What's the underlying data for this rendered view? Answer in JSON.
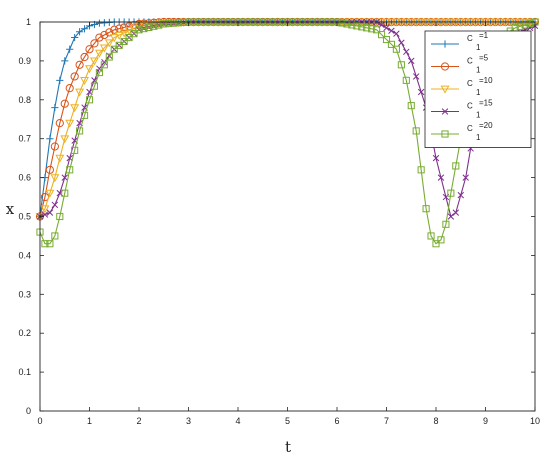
{
  "chart_data": {
    "type": "line",
    "xlabel": "t",
    "ylabel": "x",
    "xlim": [
      0,
      10
    ],
    "ylim": [
      0,
      1
    ],
    "xticks": [
      0,
      1,
      2,
      3,
      4,
      5,
      6,
      7,
      8,
      9,
      10
    ],
    "yticks": [
      0,
      0.1,
      0.2,
      0.3,
      0.4,
      0.5,
      0.6,
      0.7,
      0.8,
      0.9,
      1
    ],
    "grid": false,
    "legend_position": "top-right",
    "series": [
      {
        "name": "C1=1",
        "legend_main": "C",
        "legend_sub": "1",
        "legend_suffix": "=1",
        "color": "#1f77b4",
        "marker": "plus",
        "x": [
          0,
          0.1,
          0.2,
          0.3,
          0.4,
          0.5,
          0.6,
          0.7,
          0.8,
          1.0,
          1.2,
          1.5,
          2.0,
          3,
          4,
          5,
          6,
          7,
          8,
          9,
          10
        ],
        "y": [
          0.5,
          0.6,
          0.7,
          0.78,
          0.85,
          0.9,
          0.93,
          0.96,
          0.975,
          0.99,
          0.997,
          1.0,
          1.0,
          1.0,
          1.0,
          1.0,
          1.0,
          1.0,
          1.0,
          1.0,
          1.0
        ]
      },
      {
        "name": "C1=5",
        "legend_main": "C",
        "legend_sub": "1",
        "legend_suffix": "=5",
        "color": "#d95319",
        "marker": "circle",
        "x": [
          0,
          0.1,
          0.2,
          0.3,
          0.4,
          0.5,
          0.6,
          0.8,
          1.0,
          1.2,
          1.5,
          2.0,
          2.5,
          3,
          4,
          5,
          6,
          7,
          8,
          9,
          10
        ],
        "y": [
          0.5,
          0.55,
          0.62,
          0.68,
          0.74,
          0.79,
          0.83,
          0.89,
          0.93,
          0.96,
          0.98,
          0.995,
          1.0,
          1.0,
          1.0,
          1.0,
          1.0,
          1.0,
          1.0,
          1.0,
          1.0
        ]
      },
      {
        "name": "C1=10",
        "legend_main": "C",
        "legend_sub": "1",
        "legend_suffix": "=10",
        "color": "#edb120",
        "marker": "triangle-down",
        "x": [
          0,
          0.1,
          0.2,
          0.3,
          0.4,
          0.5,
          0.6,
          0.8,
          1.0,
          1.2,
          1.5,
          2.0,
          2.5,
          3,
          4,
          5,
          6,
          7,
          8,
          9,
          10
        ],
        "y": [
          0.5,
          0.52,
          0.56,
          0.6,
          0.65,
          0.7,
          0.74,
          0.82,
          0.88,
          0.92,
          0.96,
          0.99,
          0.997,
          1.0,
          1.0,
          1.0,
          1.0,
          1.0,
          1.0,
          1.0,
          1.0
        ]
      },
      {
        "name": "C1=15",
        "legend_main": "C",
        "legend_sub": "1",
        "legend_suffix": "=15",
        "color": "#7e2f8e",
        "marker": "cross",
        "x": [
          0,
          0.2,
          0.3,
          0.4,
          0.5,
          0.6,
          0.8,
          1.0,
          1.2,
          1.5,
          2.0,
          2.5,
          3.0,
          4.0,
          5.0,
          6.0,
          6.8,
          7.2,
          7.5,
          7.8,
          8.0,
          8.2,
          8.3,
          8.4,
          8.6,
          8.8,
          9.0,
          9.3,
          9.6,
          10.0
        ],
        "y": [
          0.5,
          0.51,
          0.53,
          0.56,
          0.6,
          0.65,
          0.74,
          0.82,
          0.88,
          0.93,
          0.98,
          0.995,
          1.0,
          1.0,
          1.0,
          1.0,
          1.0,
          0.97,
          0.9,
          0.78,
          0.65,
          0.55,
          0.5,
          0.51,
          0.6,
          0.75,
          0.86,
          0.93,
          0.97,
          0.99
        ]
      },
      {
        "name": "C1=20",
        "legend_main": "C",
        "legend_sub": "1",
        "legend_suffix": "=20",
        "color": "#77ac30",
        "marker": "square",
        "x": [
          0,
          0.1,
          0.2,
          0.3,
          0.4,
          0.5,
          0.6,
          0.8,
          1.0,
          1.2,
          1.5,
          2.0,
          2.5,
          3.0,
          4.0,
          5.0,
          6.0,
          6.8,
          7.2,
          7.4,
          7.6,
          7.7,
          7.8,
          7.9,
          8.0,
          8.1,
          8.2,
          8.3,
          8.5,
          8.7,
          9.0,
          9.3,
          9.6,
          10.0
        ],
        "y": [
          0.46,
          0.43,
          0.43,
          0.45,
          0.5,
          0.56,
          0.62,
          0.72,
          0.8,
          0.87,
          0.93,
          0.98,
          0.995,
          1.0,
          1.0,
          1.0,
          1.0,
          0.98,
          0.93,
          0.85,
          0.72,
          0.62,
          0.52,
          0.45,
          0.43,
          0.44,
          0.48,
          0.56,
          0.7,
          0.82,
          0.92,
          0.96,
          0.985,
          1.0
        ]
      }
    ]
  }
}
